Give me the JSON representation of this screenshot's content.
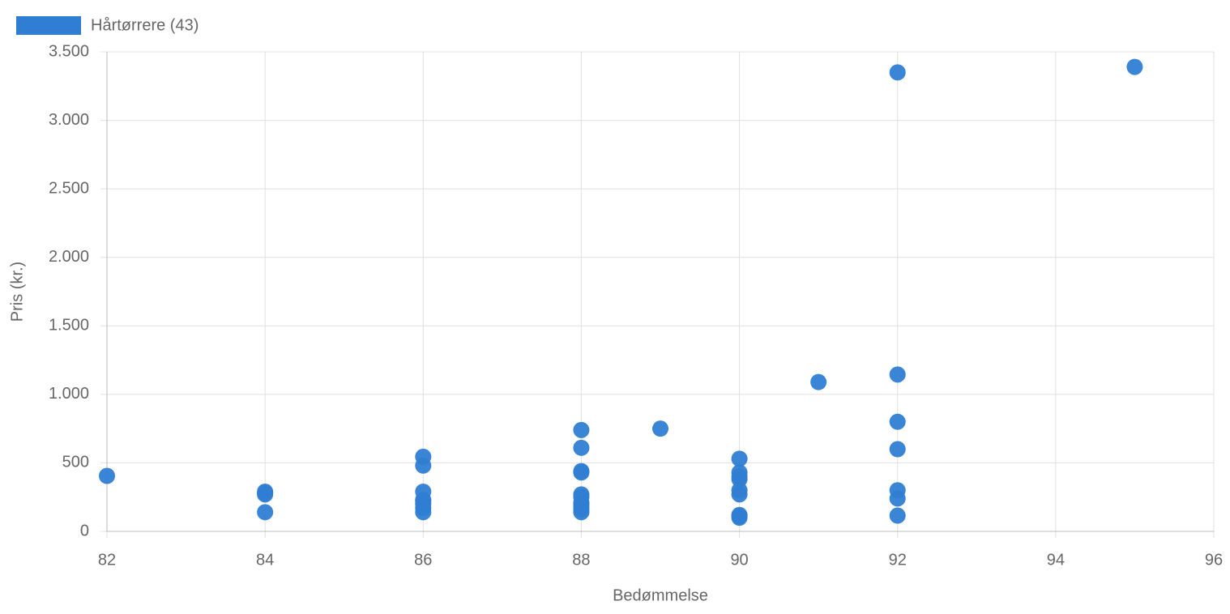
{
  "chart_data": {
    "type": "scatter",
    "x_label": "Bedømmelse",
    "y_label": "Pris (kr.)",
    "x": [
      82,
      84,
      84,
      84,
      84,
      86,
      86,
      86,
      86,
      86,
      86,
      86,
      86,
      88,
      88,
      88,
      88,
      88,
      88,
      88,
      88,
      88,
      88,
      88,
      89,
      90,
      90,
      90,
      90,
      90,
      90,
      90,
      90,
      90,
      91,
      92,
      92,
      92,
      92,
      92,
      92,
      92,
      95
    ],
    "series": [
      {
        "name": "Hårtørrere (43)",
        "color": "#2f7ed3",
        "values": [
          405,
          290,
          280,
          270,
          140,
          545,
          480,
          290,
          230,
          220,
          200,
          170,
          140,
          740,
          610,
          440,
          430,
          270,
          250,
          210,
          200,
          180,
          160,
          140,
          750,
          530,
          430,
          400,
          380,
          300,
          270,
          120,
          110,
          100,
          1090,
          3350,
          1145,
          800,
          600,
          300,
          240,
          115,
          3390
        ]
      }
    ],
    "xlim": [
      82,
      96
    ],
    "xticks": [
      82,
      84,
      86,
      88,
      90,
      92,
      94,
      96
    ],
    "ylim": [
      0,
      3500
    ],
    "yticks": [
      0,
      500,
      {
        "value": 1000,
        "label": "1.000"
      },
      {
        "value": 1500,
        "label": "1.500"
      },
      {
        "value": 2000,
        "label": "2.000"
      },
      {
        "value": 2500,
        "label": "2.500"
      },
      {
        "value": 3000,
        "label": "3.000"
      },
      {
        "value": 3500,
        "label": "3.500"
      }
    ],
    "grid": true
  }
}
